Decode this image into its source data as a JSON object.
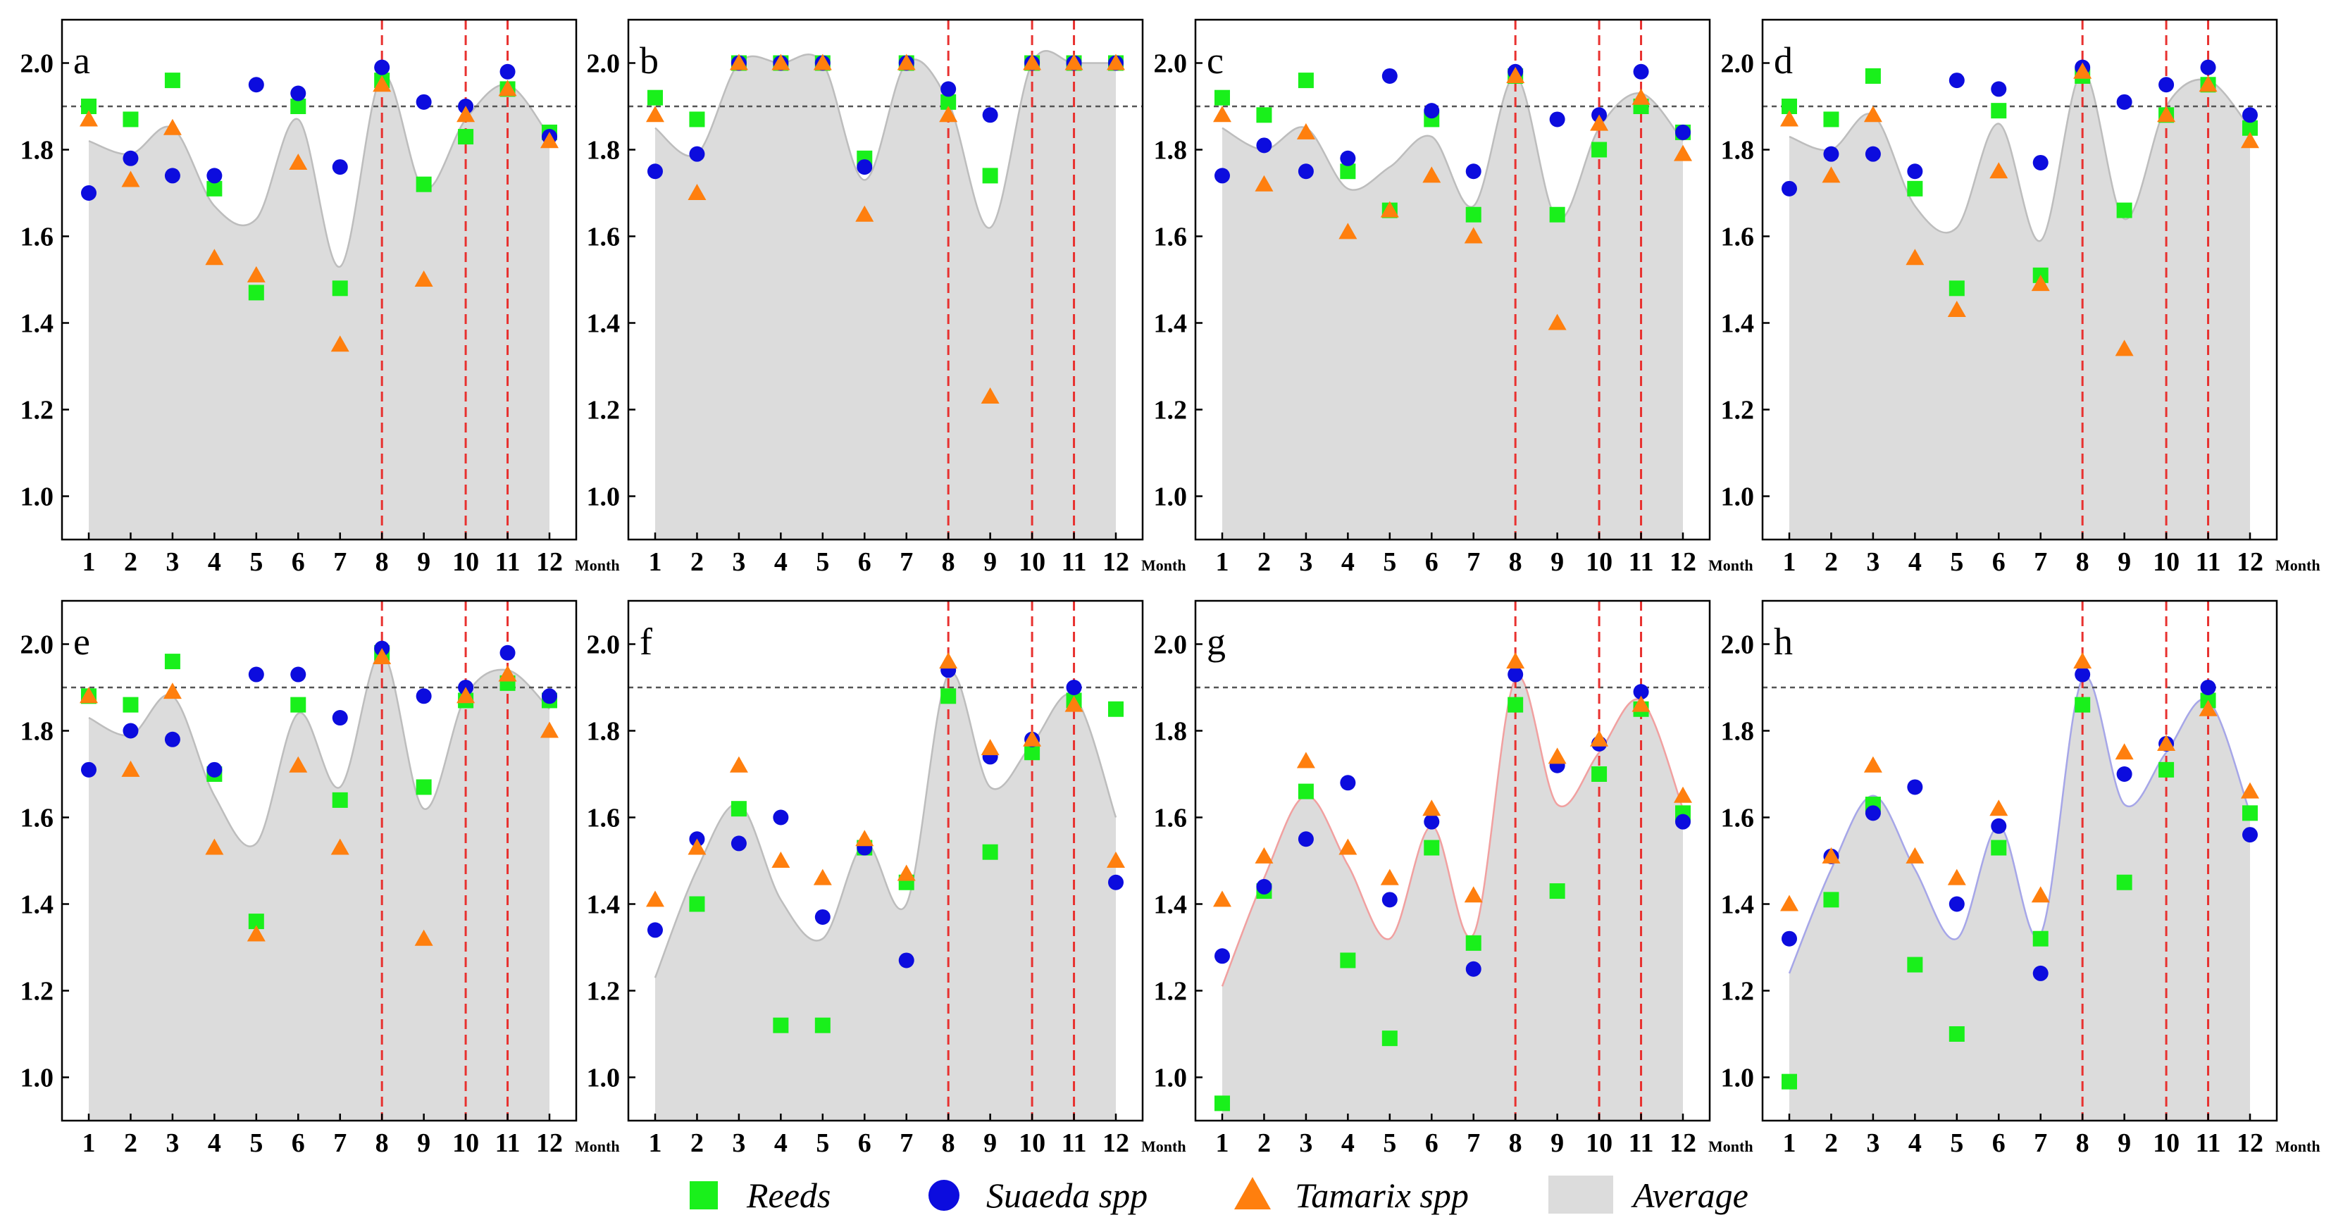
{
  "figure": {
    "x_unit_label": "Month",
    "reference_line": 1.9,
    "event_months": [
      8,
      10,
      11
    ],
    "colors": {
      "reeds": "#19f01b",
      "suaeda": "#0c0cde",
      "tamarix": "#ff7f0e",
      "average_fill": "#dcdcdc",
      "event_line": "#e8312f",
      "reference_line": "#555555"
    },
    "legend": [
      {
        "key": "reeds",
        "label": "Reeds",
        "marker": "square"
      },
      {
        "key": "suaeda",
        "label": "Suaeda spp",
        "marker": "circle"
      },
      {
        "key": "tamarix",
        "label": "Tamarix spp",
        "marker": "triangle"
      },
      {
        "key": "average",
        "label": "Average",
        "marker": "area"
      }
    ]
  },
  "chart_data": [
    {
      "panel": "a",
      "type": "scatter+area",
      "categories": [
        "1",
        "2",
        "3",
        "4",
        "5",
        "6",
        "7",
        "8",
        "9",
        "10",
        "11",
        "12"
      ],
      "ylim": [
        0.9,
        2.1
      ],
      "yticks": [
        "1.0",
        "1.2",
        "1.4",
        "1.6",
        "1.8",
        "2.0"
      ],
      "average_outline_color": "#bdbdbd",
      "series": [
        {
          "name": "Reeds",
          "values": [
            1.9,
            1.87,
            1.96,
            1.71,
            1.47,
            1.9,
            1.48,
            1.96,
            1.72,
            1.83,
            1.94,
            1.84
          ]
        },
        {
          "name": "Suaeda spp",
          "values": [
            1.7,
            1.78,
            1.74,
            1.74,
            1.95,
            1.93,
            1.76,
            1.99,
            1.91,
            1.9,
            1.98,
            1.83
          ]
        },
        {
          "name": "Tamarix spp",
          "values": [
            1.87,
            1.73,
            1.85,
            1.55,
            1.51,
            1.77,
            1.35,
            1.95,
            1.5,
            1.88,
            1.94,
            1.82
          ]
        },
        {
          "name": "Average",
          "values": [
            1.82,
            1.79,
            1.85,
            1.67,
            1.64,
            1.87,
            1.53,
            1.97,
            1.71,
            1.87,
            1.95,
            1.83
          ]
        }
      ]
    },
    {
      "panel": "b",
      "type": "scatter+area",
      "categories": [
        "1",
        "2",
        "3",
        "4",
        "5",
        "6",
        "7",
        "8",
        "9",
        "10",
        "11",
        "12"
      ],
      "ylim": [
        0.9,
        2.1
      ],
      "yticks": [
        "1.0",
        "1.2",
        "1.4",
        "1.6",
        "1.8",
        "2.0"
      ],
      "average_outline_color": "#bdbdbd",
      "series": [
        {
          "name": "Reeds",
          "values": [
            1.92,
            1.87,
            2.0,
            2.0,
            2.0,
            1.78,
            2.0,
            1.91,
            1.74,
            2.0,
            2.0,
            2.0
          ]
        },
        {
          "name": "Suaeda spp",
          "values": [
            1.75,
            1.79,
            2.0,
            2.0,
            2.0,
            1.76,
            2.0,
            1.94,
            1.88,
            2.0,
            2.0,
            2.0
          ]
        },
        {
          "name": "Tamarix spp",
          "values": [
            1.88,
            1.7,
            2.0,
            2.0,
            2.0,
            1.65,
            2.0,
            1.88,
            1.23,
            2.0,
            2.0,
            2.0
          ]
        },
        {
          "name": "Average",
          "values": [
            1.85,
            1.79,
            2.0,
            2.0,
            2.0,
            1.73,
            2.0,
            1.91,
            1.62,
            2.0,
            2.0,
            2.0
          ]
        }
      ]
    },
    {
      "panel": "c",
      "type": "scatter+area",
      "categories": [
        "1",
        "2",
        "3",
        "4",
        "5",
        "6",
        "7",
        "8",
        "9",
        "10",
        "11",
        "12"
      ],
      "ylim": [
        0.9,
        2.1
      ],
      "yticks": [
        "1.0",
        "1.2",
        "1.4",
        "1.6",
        "1.8",
        "2.0"
      ],
      "average_outline_color": "#bdbdbd",
      "series": [
        {
          "name": "Reeds",
          "values": [
            1.92,
            1.88,
            1.96,
            1.75,
            1.66,
            1.87,
            1.65,
            1.97,
            1.65,
            1.8,
            1.9,
            1.84
          ]
        },
        {
          "name": "Suaeda spp",
          "values": [
            1.74,
            1.81,
            1.75,
            1.78,
            1.97,
            1.89,
            1.75,
            1.98,
            1.87,
            1.88,
            1.98,
            1.84
          ]
        },
        {
          "name": "Tamarix spp",
          "values": [
            1.88,
            1.72,
            1.84,
            1.61,
            1.66,
            1.74,
            1.6,
            1.97,
            1.4,
            1.86,
            1.92,
            1.79
          ]
        },
        {
          "name": "Average",
          "values": [
            1.85,
            1.8,
            1.85,
            1.71,
            1.76,
            1.83,
            1.67,
            1.97,
            1.64,
            1.85,
            1.93,
            1.82
          ]
        }
      ]
    },
    {
      "panel": "d",
      "type": "scatter+area",
      "categories": [
        "1",
        "2",
        "3",
        "4",
        "5",
        "6",
        "7",
        "8",
        "9",
        "10",
        "11",
        "12"
      ],
      "ylim": [
        0.9,
        2.1
      ],
      "yticks": [
        "1.0",
        "1.2",
        "1.4",
        "1.6",
        "1.8",
        "2.0"
      ],
      "average_outline_color": "#bdbdbd",
      "series": [
        {
          "name": "Reeds",
          "values": [
            1.9,
            1.87,
            1.97,
            1.71,
            1.48,
            1.89,
            1.51,
            1.97,
            1.66,
            1.88,
            1.95,
            1.85
          ]
        },
        {
          "name": "Suaeda spp",
          "values": [
            1.71,
            1.79,
            1.79,
            1.75,
            1.96,
            1.94,
            1.77,
            1.99,
            1.91,
            1.95,
            1.99,
            1.88
          ]
        },
        {
          "name": "Tamarix spp",
          "values": [
            1.87,
            1.74,
            1.88,
            1.55,
            1.43,
            1.75,
            1.49,
            1.98,
            1.34,
            1.88,
            1.95,
            1.82
          ]
        },
        {
          "name": "Average",
          "values": [
            1.83,
            1.8,
            1.88,
            1.67,
            1.62,
            1.86,
            1.59,
            1.98,
            1.64,
            1.9,
            1.96,
            1.85
          ]
        }
      ]
    },
    {
      "panel": "e",
      "type": "scatter+area",
      "categories": [
        "1",
        "2",
        "3",
        "4",
        "5",
        "6",
        "7",
        "8",
        "9",
        "10",
        "11",
        "12"
      ],
      "ylim": [
        0.9,
        2.1
      ],
      "yticks": [
        "1.0",
        "1.2",
        "1.4",
        "1.6",
        "1.8",
        "2.0"
      ],
      "average_outline_color": "#bdbdbd",
      "series": [
        {
          "name": "Reeds",
          "values": [
            1.88,
            1.86,
            1.96,
            1.7,
            1.36,
            1.86,
            1.64,
            1.98,
            1.67,
            1.87,
            1.91,
            1.87
          ]
        },
        {
          "name": "Suaeda spp",
          "values": [
            1.71,
            1.8,
            1.78,
            1.71,
            1.93,
            1.93,
            1.83,
            1.99,
            1.88,
            1.9,
            1.98,
            1.88
          ]
        },
        {
          "name": "Tamarix spp",
          "values": [
            1.88,
            1.71,
            1.89,
            1.53,
            1.33,
            1.72,
            1.53,
            1.97,
            1.32,
            1.88,
            1.93,
            1.8
          ]
        },
        {
          "name": "Average",
          "values": [
            1.83,
            1.79,
            1.88,
            1.65,
            1.54,
            1.84,
            1.67,
            1.98,
            1.62,
            1.88,
            1.94,
            1.85
          ]
        }
      ]
    },
    {
      "panel": "f",
      "type": "scatter+area",
      "categories": [
        "1",
        "2",
        "3",
        "4",
        "5",
        "6",
        "7",
        "8",
        "9",
        "10",
        "11",
        "12"
      ],
      "ylim": [
        0.9,
        2.1
      ],
      "yticks": [
        "1.0",
        "1.2",
        "1.4",
        "1.6",
        "1.8",
        "2.0"
      ],
      "average_outline_color": "#bdbdbd",
      "series": [
        {
          "name": "Reeds",
          "values": [
            null,
            1.4,
            1.62,
            1.12,
            1.12,
            1.53,
            1.45,
            1.88,
            1.52,
            1.75,
            1.87,
            1.85
          ]
        },
        {
          "name": "Suaeda spp",
          "values": [
            1.34,
            1.55,
            1.54,
            1.6,
            1.37,
            1.53,
            1.27,
            1.94,
            1.74,
            1.78,
            1.9,
            1.45
          ]
        },
        {
          "name": "Tamarix spp",
          "values": [
            1.41,
            1.53,
            1.72,
            1.5,
            1.46,
            1.55,
            1.47,
            1.96,
            1.76,
            1.78,
            1.86,
            1.5
          ]
        },
        {
          "name": "Average",
          "values": [
            1.23,
            1.48,
            1.63,
            1.41,
            1.32,
            1.54,
            1.4,
            1.93,
            1.67,
            1.77,
            1.88,
            1.6
          ]
        }
      ]
    },
    {
      "panel": "g",
      "type": "scatter+area",
      "categories": [
        "1",
        "2",
        "3",
        "4",
        "5",
        "6",
        "7",
        "8",
        "9",
        "10",
        "11",
        "12"
      ],
      "ylim": [
        0.9,
        2.1
      ],
      "yticks": [
        "1.0",
        "1.2",
        "1.4",
        "1.6",
        "1.8",
        "2.0"
      ],
      "average_outline_color": "#f1a0a0",
      "series": [
        {
          "name": "Reeds",
          "values": [
            0.94,
            1.43,
            1.66,
            1.27,
            1.09,
            1.53,
            1.31,
            1.86,
            1.43,
            1.7,
            1.85,
            1.61
          ]
        },
        {
          "name": "Suaeda spp",
          "values": [
            1.28,
            1.44,
            1.55,
            1.68,
            1.41,
            1.59,
            1.25,
            1.93,
            1.72,
            1.77,
            1.89,
            1.59
          ]
        },
        {
          "name": "Tamarix spp",
          "values": [
            1.41,
            1.51,
            1.73,
            1.53,
            1.46,
            1.62,
            1.42,
            1.96,
            1.74,
            1.78,
            1.86,
            1.65
          ]
        },
        {
          "name": "Average",
          "values": [
            1.21,
            1.46,
            1.65,
            1.49,
            1.32,
            1.58,
            1.33,
            1.92,
            1.63,
            1.75,
            1.87,
            1.62
          ]
        }
      ]
    },
    {
      "panel": "h",
      "type": "scatter+area",
      "categories": [
        "1",
        "2",
        "3",
        "4",
        "5",
        "6",
        "7",
        "8",
        "9",
        "10",
        "11",
        "12"
      ],
      "ylim": [
        0.9,
        2.1
      ],
      "yticks": [
        "1.0",
        "1.2",
        "1.4",
        "1.6",
        "1.8",
        "2.0"
      ],
      "average_outline_color": "#a6a6e8",
      "series": [
        {
          "name": "Reeds",
          "values": [
            0.99,
            1.41,
            1.63,
            1.26,
            1.1,
            1.53,
            1.32,
            1.86,
            1.45,
            1.71,
            1.87,
            1.61
          ]
        },
        {
          "name": "Suaeda spp",
          "values": [
            1.32,
            1.51,
            1.61,
            1.67,
            1.4,
            1.58,
            1.24,
            1.93,
            1.7,
            1.77,
            1.9,
            1.56
          ]
        },
        {
          "name": "Tamarix spp",
          "values": [
            1.4,
            1.51,
            1.72,
            1.51,
            1.46,
            1.62,
            1.42,
            1.96,
            1.75,
            1.77,
            1.85,
            1.66
          ]
        },
        {
          "name": "Average",
          "values": [
            1.24,
            1.48,
            1.65,
            1.48,
            1.32,
            1.58,
            1.33,
            1.92,
            1.63,
            1.75,
            1.87,
            1.61
          ]
        }
      ]
    }
  ]
}
